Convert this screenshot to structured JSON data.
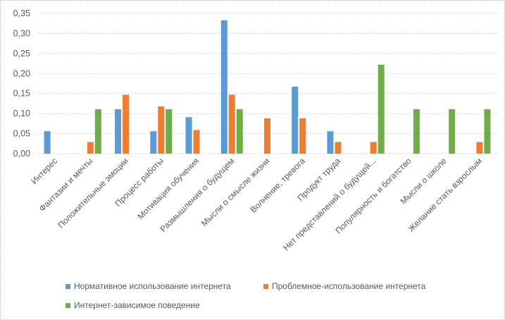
{
  "chart_data": {
    "type": "bar",
    "title": "",
    "xlabel": "",
    "ylabel": "",
    "ylim": [
      0,
      0.35
    ],
    "yticks": [
      "0,00",
      "0,05",
      "0,10",
      "0,15",
      "0,20",
      "0,25",
      "0,30",
      "0,35"
    ],
    "grid": true,
    "legend_position": "bottom",
    "categories": [
      "Интерес",
      "Фантазии и мечты",
      "Положительные эмоции",
      "Процесс работы",
      "Мотивация обучения",
      "Размышления о будущем",
      "Мысли о смысле жизни",
      "Волнение, тревога",
      "Продукт труда",
      "Нет представлений о будущей...",
      "Популярность и богатство",
      "Мысли о школе",
      "Желание стать взрослым"
    ],
    "series": [
      {
        "name": "Нормативное использование интернета",
        "color": "#5b9bd5",
        "values": [
          0.056,
          0,
          0.111,
          0.056,
          0.091,
          0.333,
          0,
          0.167,
          0.056,
          0,
          0,
          0,
          0
        ]
      },
      {
        "name": "Проблемное-использование интернета",
        "color": "#ed7d31",
        "values": [
          0,
          0.029,
          0.147,
          0.118,
          0.059,
          0.147,
          0.088,
          0.088,
          0.029,
          0.029,
          0,
          0,
          0.029
        ]
      },
      {
        "name": "Интернет-зависимое поведение",
        "color": "#70ad47",
        "values": [
          0,
          0.111,
          0,
          0.111,
          0,
          0.111,
          0,
          0,
          0,
          0.222,
          0.111,
          0.111,
          0.111
        ]
      }
    ]
  }
}
